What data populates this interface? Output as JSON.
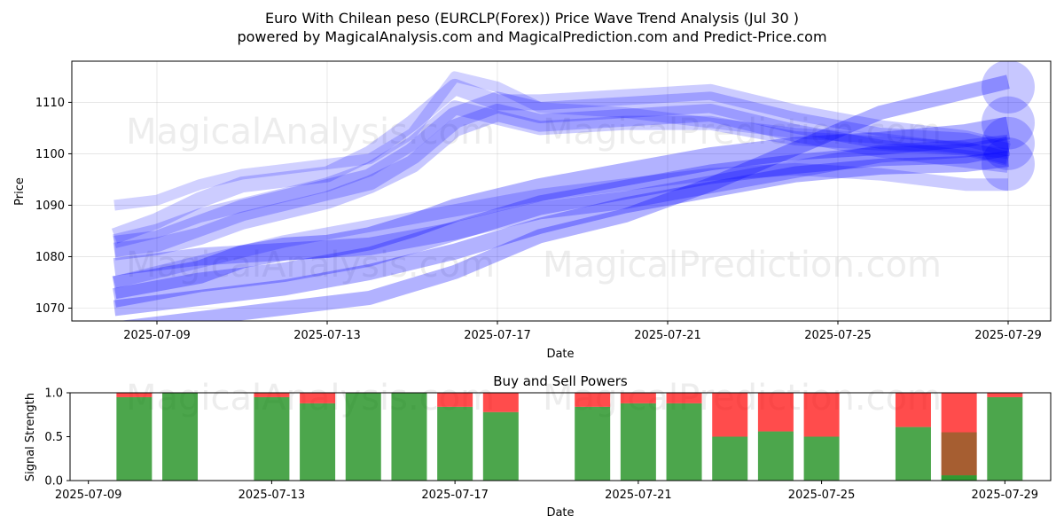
{
  "figure": {
    "title_line1": "Euro With Chilean peso (EURCLP(Forex)) Price Wave Trend Analysis (Jul 30 )",
    "title_line2": "powered by MagicalAnalysis.com and MagicalPrediction.com and Predict-Price.com",
    "watermarks": [
      "MagicalAnalysis.com",
      "MagicalPrediction.com"
    ]
  },
  "colors": {
    "wave": "#0000ff",
    "buy": "#008000",
    "sell": "#ff0000",
    "grid": "#b0b0b0"
  },
  "chart_data": [
    {
      "type": "line",
      "title": "",
      "xlabel": "Date",
      "ylabel": "Price",
      "x_ticks": [
        "2025-07-09",
        "2025-07-13",
        "2025-07-17",
        "2025-07-21",
        "2025-07-25",
        "2025-07-29"
      ],
      "y_ticks": [
        1070,
        1080,
        1090,
        1100,
        1110
      ],
      "xlim": [
        "2025-07-07",
        "2025-07-30"
      ],
      "ylim": [
        1067.5,
        1118
      ],
      "grid": true,
      "series": [
        {
          "x": [
            "2025-07-08",
            "2025-07-10",
            "2025-07-11",
            "2025-07-12",
            "2025-07-13",
            "2025-07-14",
            "2025-07-15",
            "2025-07-16",
            "2025-07-18",
            "2025-07-20",
            "2025-07-22",
            "2025-07-24",
            "2025-07-26",
            "2025-07-28",
            "2025-07-29"
          ],
          "values": [
            1074,
            1077,
            1080,
            1081.5,
            1082,
            1083.5,
            1086,
            1089,
            1093,
            1096,
            1099,
            1101,
            1102,
            1103.5,
            1105
          ]
        },
        {
          "x": [
            "2025-07-08",
            "2025-07-10",
            "2025-07-12",
            "2025-07-14",
            "2025-07-16",
            "2025-07-18",
            "2025-07-20",
            "2025-07-22",
            "2025-07-24",
            "2025-07-26",
            "2025-07-28",
            "2025-07-29"
          ],
          "values": [
            1072,
            1075,
            1077,
            1080,
            1085,
            1090,
            1093,
            1096,
            1098,
            1099.5,
            1100,
            1101.5
          ]
        },
        {
          "x": [
            "2025-07-08",
            "2025-07-10",
            "2025-07-12",
            "2025-07-14",
            "2025-07-16",
            "2025-07-18",
            "2025-07-20",
            "2025-07-22",
            "2025-07-24",
            "2025-07-26",
            "2025-07-28",
            "2025-07-29"
          ],
          "values": [
            1078,
            1080,
            1081,
            1082,
            1085,
            1089,
            1091,
            1094,
            1097,
            1100,
            1101,
            1102
          ]
        },
        {
          "x": [
            "2025-07-08",
            "2025-07-10",
            "2025-07-12",
            "2025-07-14",
            "2025-07-16",
            "2025-07-18",
            "2025-07-20",
            "2025-07-22",
            "2025-07-24",
            "2025-07-26",
            "2025-07-28",
            "2025-07-29"
          ],
          "values": [
            1070,
            1072,
            1074,
            1077,
            1081,
            1086,
            1090,
            1093,
            1096,
            1097.5,
            1098,
            1099
          ]
        },
        {
          "x": [
            "2025-07-08",
            "2025-07-10",
            "2025-07-12",
            "2025-07-14",
            "2025-07-16",
            "2025-07-18",
            "2025-07-20",
            "2025-07-22",
            "2025-07-24",
            "2025-07-26",
            "2025-07-28",
            "2025-07-29"
          ],
          "values": [
            1066,
            1068,
            1070,
            1072,
            1077,
            1084,
            1088,
            1094,
            1101,
            1108,
            1112,
            1114
          ]
        },
        {
          "x": [
            "2025-07-08",
            "2025-07-10",
            "2025-07-12",
            "2025-07-14",
            "2025-07-16",
            "2025-07-18",
            "2025-07-20",
            "2025-07-22",
            "2025-07-24",
            "2025-07-26",
            "2025-07-28",
            "2025-07-29"
          ],
          "values": [
            1075,
            1079,
            1083,
            1086,
            1089,
            1092,
            1094,
            1096,
            1097,
            1096,
            1094,
            1094
          ]
        },
        {
          "x": [
            "2025-07-08",
            "2025-07-09",
            "2025-07-10",
            "2025-07-11",
            "2025-07-12",
            "2025-07-13",
            "2025-07-14",
            "2025-07-15",
            "2025-07-16",
            "2025-07-17",
            "2025-07-18",
            "2025-07-20",
            "2025-07-22",
            "2025-07-24",
            "2025-07-26",
            "2025-07-28",
            "2025-07-29"
          ],
          "values": [
            1082,
            1083,
            1086,
            1089,
            1091,
            1093,
            1095,
            1100,
            1107,
            1110,
            1108,
            1109,
            1110,
            1106,
            1103,
            1102,
            1100
          ]
        },
        {
          "x": [
            "2025-07-08",
            "2025-07-09",
            "2025-07-10",
            "2025-07-11",
            "2025-07-12",
            "2025-07-13",
            "2025-07-14",
            "2025-07-15",
            "2025-07-16",
            "2025-07-17",
            "2025-07-18",
            "2025-07-20",
            "2025-07-22",
            "2025-07-24",
            "2025-07-26",
            "2025-07-28",
            "2025-07-29"
          ],
          "values": [
            1081,
            1082,
            1084,
            1087,
            1089,
            1091,
            1094,
            1098,
            1105,
            1108,
            1106,
            1107,
            1108,
            1104,
            1101,
            1099,
            1098
          ]
        },
        {
          "x": [
            "2025-07-08",
            "2025-07-09",
            "2025-07-10",
            "2025-07-11",
            "2025-07-12",
            "2025-07-13",
            "2025-07-14",
            "2025-07-15",
            "2025-07-16",
            "2025-07-17",
            "2025-07-18",
            "2025-07-20",
            "2025-07-22",
            "2025-07-24",
            "2025-07-26",
            "2025-07-28",
            "2025-07-29"
          ],
          "values": [
            1084,
            1087,
            1091,
            1094,
            1095,
            1096,
            1100,
            1106,
            1113,
            1110,
            1110,
            1111,
            1112,
            1108,
            1105,
            1103,
            1101
          ]
        },
        {
          "x": [
            "2025-07-08",
            "2025-07-09",
            "2025-07-10",
            "2025-07-11",
            "2025-07-12",
            "2025-07-13",
            "2025-07-14",
            "2025-07-15",
            "2025-07-16",
            "2025-07-17",
            "2025-07-18",
            "2025-07-20",
            "2025-07-22",
            "2025-07-24",
            "2025-07-26",
            "2025-07-28",
            "2025-07-29"
          ],
          "values": [
            1083,
            1085,
            1088,
            1090,
            1092,
            1094,
            1097,
            1102,
            1109,
            1107,
            1105,
            1106,
            1106,
            1103,
            1102,
            1101,
            1099
          ]
        },
        {
          "x": [
            "2025-07-08",
            "2025-07-09",
            "2025-07-10",
            "2025-07-11",
            "2025-07-12",
            "2025-07-13",
            "2025-07-14",
            "2025-07-15",
            "2025-07-16",
            "2025-07-17",
            "2025-07-18",
            "2025-07-20",
            "2025-07-22",
            "2025-07-24",
            "2025-07-26",
            "2025-07-28",
            "2025-07-29"
          ],
          "values": [
            1090,
            1091,
            1094,
            1096,
            1097,
            1098,
            1099,
            1104,
            1115,
            1113,
            1109,
            1108,
            1106,
            1104,
            1103,
            1101,
            1100
          ]
        }
      ],
      "end_markers": [
        1113,
        1102,
        1098,
        1106
      ]
    },
    {
      "type": "bar",
      "title": "Buy and Sell Powers",
      "xlabel": "Date",
      "ylabel": "Signal Strength",
      "x_ticks": [
        "2025-07-09",
        "2025-07-13",
        "2025-07-17",
        "2025-07-21",
        "2025-07-25",
        "2025-07-29"
      ],
      "y_ticks": [
        "0.0",
        "0.5",
        "1.0"
      ],
      "xlim": [
        "2025-07-08.6",
        "2025-07-30"
      ],
      "ylim": [
        0,
        1
      ],
      "categories": [
        "2025-07-10",
        "2025-07-11",
        "2025-07-13",
        "2025-07-14",
        "2025-07-15",
        "2025-07-16",
        "2025-07-17",
        "2025-07-18",
        "2025-07-20",
        "2025-07-21",
        "2025-07-22",
        "2025-07-23",
        "2025-07-24",
        "2025-07-25",
        "2025-07-27",
        "2025-07-28",
        "2025-07-29"
      ],
      "series": [
        {
          "name": "buy",
          "values": [
            0.95,
            1.0,
            0.95,
            0.88,
            1.0,
            1.0,
            0.84,
            0.78,
            0.84,
            0.88,
            0.88,
            0.5,
            0.56,
            0.5,
            0.61,
            0.06,
            0.95
          ]
        },
        {
          "name": "sell",
          "values": [
            0.05,
            0.0,
            0.05,
            0.12,
            0.0,
            0.0,
            0.16,
            0.22,
            0.16,
            0.12,
            0.12,
            0.5,
            0.44,
            0.5,
            0.39,
            0.94,
            0.05
          ]
        }
      ],
      "overlay_buy_fraction_day": "2025-07-28",
      "overlay_buy_value": 0.55
    }
  ]
}
